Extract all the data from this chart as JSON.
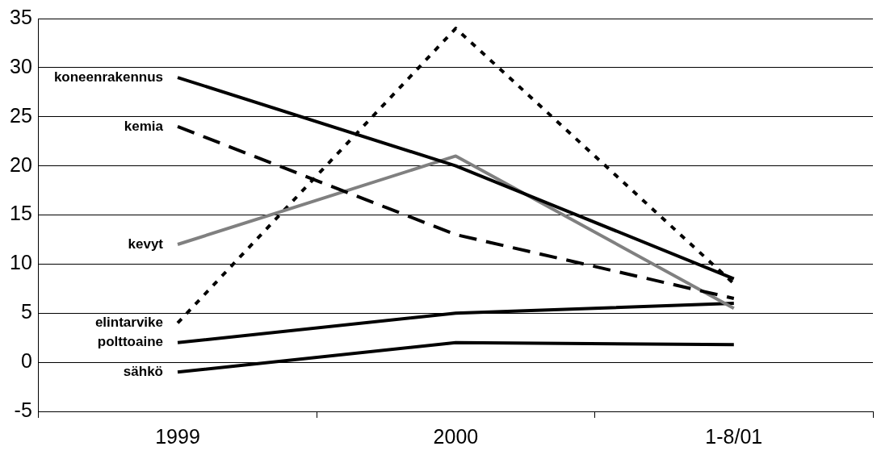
{
  "chart_data": {
    "type": "line",
    "categories": [
      "1999",
      "2000",
      "1-8/01"
    ],
    "series": [
      {
        "name": "koneenrakennus",
        "color": "#000000",
        "line_style": "solid",
        "values": [
          29,
          20,
          8.5
        ]
      },
      {
        "name": "kemia",
        "color": "#000000",
        "line_style": "dashed",
        "values": [
          24,
          13,
          6.5
        ]
      },
      {
        "name": "kevyt",
        "color": "#808080",
        "line_style": "solid",
        "values": [
          12,
          21,
          5.5
        ]
      },
      {
        "name": "elintarvike",
        "color": "#000000",
        "line_style": "dotted",
        "values": [
          4,
          34,
          8
        ]
      },
      {
        "name": "polttoaine",
        "color": "#000000",
        "line_style": "solid",
        "values": [
          2,
          5,
          6
        ]
      },
      {
        "name": "sähkö",
        "color": "#000000",
        "line_style": "solid",
        "values": [
          -1,
          2,
          1.8
        ]
      }
    ],
    "ylim": [
      -5,
      35
    ],
    "yticks": [
      -5,
      0,
      5,
      10,
      15,
      20,
      25,
      30,
      35
    ],
    "grid": "y",
    "legend": false,
    "marker": "none"
  }
}
